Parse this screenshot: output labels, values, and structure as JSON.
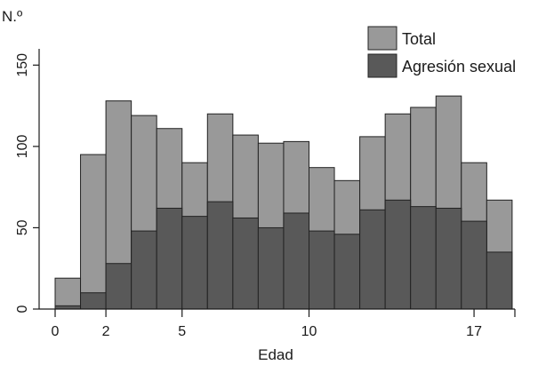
{
  "chart_data": {
    "type": "bar",
    "subtype": "overlapping-histogram",
    "ylabel": "N.º",
    "xlabel": "Edad",
    "ylim": [
      0,
      160
    ],
    "yticks": [
      0,
      50,
      100,
      150
    ],
    "xticks": [
      0,
      2,
      5,
      10,
      17
    ],
    "x": [
      0,
      1,
      2,
      3,
      4,
      5,
      6,
      7,
      8,
      9,
      10,
      11,
      12,
      13,
      14,
      15,
      16,
      17
    ],
    "series": [
      {
        "name": "Total",
        "color": "#999999",
        "values": [
          19,
          95,
          128,
          119,
          111,
          90,
          120,
          107,
          102,
          103,
          87,
          79,
          106,
          120,
          124,
          131,
          90,
          67
        ]
      },
      {
        "name": "Agresión sexual",
        "color": "#595959",
        "values": [
          2,
          10,
          28,
          48,
          62,
          57,
          66,
          56,
          50,
          59,
          48,
          46,
          61,
          67,
          63,
          62,
          54,
          35
        ]
      }
    ],
    "legend_position": "top-right",
    "grid": false
  }
}
